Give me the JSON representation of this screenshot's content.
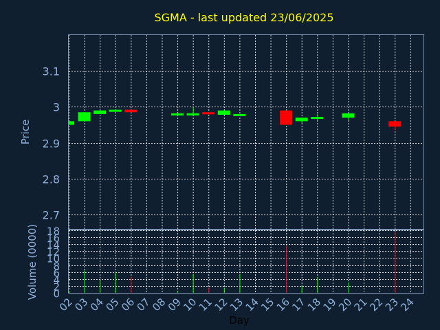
{
  "chart_data": {
    "type": "candlestick",
    "title": "SGMA - last updated 23/06/2025",
    "xlabel": "Day",
    "price_panel": {
      "ylabel": "Price",
      "yticks": [
        "2.7",
        "2.8",
        "2.9",
        "3",
        "3.1"
      ],
      "ylim": [
        2.66,
        3.2
      ]
    },
    "volume_panel": {
      "ylabel": "Volume (0000)",
      "yticks": [
        "0",
        "2",
        "4",
        "6",
        "8",
        "10",
        "12",
        "14",
        "16",
        "18"
      ],
      "ylim": [
        0,
        18
      ]
    },
    "x_tick_labels": [
      "02",
      "03",
      "04",
      "05",
      "06",
      "07",
      "08",
      "09",
      "10",
      "11",
      "12",
      "13",
      "14",
      "15",
      "16",
      "17",
      "18",
      "19",
      "20",
      "21",
      "22",
      "23",
      "24"
    ],
    "candles": [
      {
        "day": "02",
        "open": 2.95,
        "close": 2.96,
        "high": 2.96,
        "low": 2.95,
        "volume": 0.5,
        "color": "#00ff00"
      },
      {
        "day": "03",
        "open": 2.96,
        "close": 2.985,
        "high": 2.985,
        "low": 2.96,
        "volume": 6.5,
        "color": "#00ff00"
      },
      {
        "day": "04",
        "open": 2.98,
        "close": 2.99,
        "high": 2.99,
        "low": 2.98,
        "volume": 3.5,
        "color": "#00ff00"
      },
      {
        "day": "05",
        "open": 2.988,
        "close": 2.992,
        "high": 2.992,
        "low": 2.988,
        "volume": 6.0,
        "color": "#00ff00"
      },
      {
        "day": "06",
        "open": 2.992,
        "close": 2.985,
        "high": 2.992,
        "low": 2.985,
        "volume": 4.5,
        "color": "#ff0000"
      },
      {
        "day": "09",
        "open": 2.978,
        "close": 2.982,
        "high": 2.982,
        "low": 2.978,
        "volume": 0.5,
        "color": "#00ff00"
      },
      {
        "day": "10",
        "open": 2.978,
        "close": 2.982,
        "high": 2.998,
        "low": 2.978,
        "volume": 5.5,
        "color": "#00ff00"
      },
      {
        "day": "11",
        "open": 2.985,
        "close": 2.98,
        "high": 2.985,
        "low": 2.978,
        "volume": 1.5,
        "color": "#ff0000"
      },
      {
        "day": "12",
        "open": 2.978,
        "close": 2.99,
        "high": 2.99,
        "low": 2.978,
        "volume": 1.5,
        "color": "#00ff00"
      },
      {
        "day": "13",
        "open": 2.977,
        "close": 2.98,
        "high": 2.98,
        "low": 2.975,
        "volume": 5.5,
        "color": "#00ff00"
      },
      {
        "day": "16",
        "open": 2.99,
        "close": 2.95,
        "high": 2.99,
        "low": 2.95,
        "volume": 13.5,
        "color": "#ff0000"
      },
      {
        "day": "17",
        "open": 2.96,
        "close": 2.97,
        "high": 2.97,
        "low": 2.955,
        "volume": 2.0,
        "color": "#00ff00"
      },
      {
        "day": "18",
        "open": 2.968,
        "close": 2.972,
        "high": 2.98,
        "low": 2.962,
        "volume": 4.5,
        "color": "#00ff00"
      },
      {
        "day": "20",
        "open": 2.97,
        "close": 2.982,
        "high": 2.982,
        "low": 2.962,
        "volume": 3.0,
        "color": "#00ff00"
      },
      {
        "day": "23",
        "open": 2.96,
        "close": 2.945,
        "high": 2.96,
        "low": 2.935,
        "volume": 17.5,
        "color": "#ff0000"
      }
    ]
  }
}
